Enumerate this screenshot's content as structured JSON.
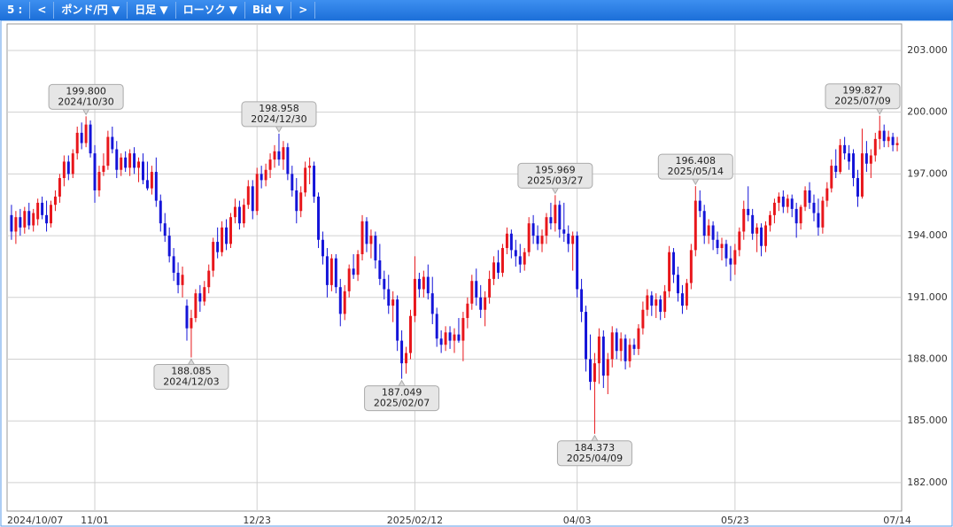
{
  "toolbar": {
    "items": [
      "5 :",
      "<",
      "ポンド/円 ▼",
      "日足 ▼",
      "ローソク ▼",
      "Bid ▼",
      ">"
    ]
  },
  "chart_data": {
    "type": "candlestick",
    "grid": true,
    "up_color": "#e8161b",
    "down_color": "#1414d8",
    "candles": [
      [
        195.0,
        195.5,
        193.8,
        194.2
      ],
      [
        194.2,
        195.2,
        193.6,
        194.9
      ],
      [
        194.9,
        195.3,
        194.0,
        194.4
      ],
      [
        194.4,
        195.4,
        194.1,
        195.2
      ],
      [
        195.2,
        195.6,
        194.3,
        194.5
      ],
      [
        194.5,
        195.3,
        194.2,
        195.1
      ],
      [
        194.8,
        195.8,
        194.5,
        195.6
      ],
      [
        195.6,
        195.9,
        194.8,
        195.0
      ],
      [
        195.0,
        195.7,
        194.2,
        194.6
      ],
      [
        194.6,
        195.7,
        194.4,
        195.5
      ],
      [
        195.5,
        196.2,
        195.2,
        195.9
      ],
      [
        195.9,
        197.0,
        195.6,
        196.8
      ],
      [
        196.8,
        197.9,
        196.4,
        197.6
      ],
      [
        197.6,
        197.9,
        196.7,
        197.0
      ],
      [
        197.0,
        198.2,
        196.8,
        198.0
      ],
      [
        198.0,
        199.3,
        197.7,
        199.0
      ],
      [
        199.0,
        199.5,
        198.2,
        198.5
      ],
      [
        198.5,
        199.8,
        198.3,
        199.4
      ],
      [
        199.4,
        199.6,
        197.8,
        198.0
      ],
      [
        198.0,
        198.4,
        195.6,
        196.2
      ],
      [
        196.2,
        197.4,
        195.9,
        197.1
      ],
      [
        197.1,
        198.0,
        196.9,
        197.4
      ],
      [
        197.4,
        199.1,
        197.2,
        198.8
      ],
      [
        198.8,
        199.3,
        198.0,
        198.2
      ],
      [
        198.2,
        198.6,
        196.8,
        197.2
      ],
      [
        197.2,
        198.0,
        196.9,
        197.8
      ],
      [
        197.8,
        198.1,
        197.1,
        197.3
      ],
      [
        197.3,
        198.2,
        196.9,
        198.0
      ],
      [
        198.0,
        198.3,
        197.0,
        197.3
      ],
      [
        197.3,
        197.8,
        196.6,
        197.6
      ],
      [
        197.6,
        198.0,
        196.5,
        196.7
      ],
      [
        196.7,
        197.6,
        196.2,
        196.3
      ],
      [
        196.3,
        197.4,
        196.0,
        197.1
      ],
      [
        197.1,
        197.8,
        195.4,
        195.7
      ],
      [
        195.7,
        196.0,
        194.2,
        194.6
      ],
      [
        194.6,
        195.1,
        193.7,
        194.0
      ],
      [
        194.0,
        194.4,
        192.7,
        193.0
      ],
      [
        193.0,
        193.4,
        191.8,
        192.2
      ],
      [
        192.2,
        192.7,
        191.2,
        191.6
      ],
      [
        191.6,
        192.5,
        191.0,
        192.1
      ],
      [
        190.6,
        190.9,
        188.9,
        189.5
      ],
      [
        189.5,
        190.4,
        188.085,
        190.0
      ],
      [
        190.0,
        191.4,
        189.8,
        191.2
      ],
      [
        191.2,
        191.6,
        190.3,
        190.8
      ],
      [
        190.8,
        191.8,
        190.6,
        191.5
      ],
      [
        191.5,
        192.6,
        191.2,
        192.3
      ],
      [
        192.3,
        193.9,
        192.0,
        193.7
      ],
      [
        193.7,
        194.4,
        192.9,
        193.2
      ],
      [
        193.2,
        194.7,
        193.0,
        194.4
      ],
      [
        194.4,
        194.8,
        193.3,
        193.6
      ],
      [
        193.6,
        195.1,
        193.4,
        194.9
      ],
      [
        194.9,
        195.8,
        194.6,
        195.4
      ],
      [
        195.4,
        195.7,
        194.3,
        194.6
      ],
      [
        194.6,
        195.8,
        194.4,
        195.5
      ],
      [
        195.5,
        196.7,
        195.3,
        196.4
      ],
      [
        196.4,
        196.7,
        194.8,
        195.2
      ],
      [
        195.2,
        197.3,
        195.0,
        197.0
      ],
      [
        197.0,
        197.4,
        196.3,
        196.7
      ],
      [
        196.7,
        197.5,
        196.4,
        197.2
      ],
      [
        197.2,
        198.0,
        196.8,
        197.7
      ],
      [
        197.7,
        198.4,
        197.3,
        198.1
      ],
      [
        198.1,
        198.958,
        197.4,
        197.7
      ],
      [
        197.7,
        198.6,
        197.2,
        198.3
      ],
      [
        198.3,
        198.5,
        196.7,
        197.0
      ],
      [
        197.0,
        197.4,
        195.9,
        196.2
      ],
      [
        196.2,
        196.8,
        194.6,
        195.2
      ],
      [
        195.2,
        196.4,
        194.9,
        196.1
      ],
      [
        196.1,
        197.6,
        195.9,
        197.3
      ],
      [
        197.3,
        197.8,
        196.5,
        197.4
      ],
      [
        197.4,
        197.6,
        195.6,
        195.9
      ],
      [
        195.9,
        196.1,
        193.4,
        193.8
      ],
      [
        193.8,
        194.2,
        192.6,
        193.0
      ],
      [
        193.0,
        193.4,
        191.0,
        191.6
      ],
      [
        191.6,
        193.1,
        191.3,
        192.9
      ],
      [
        192.9,
        193.1,
        191.2,
        191.5
      ],
      [
        191.5,
        191.9,
        189.6,
        190.2
      ],
      [
        190.2,
        191.6,
        189.9,
        191.3
      ],
      [
        191.3,
        192.6,
        191.0,
        192.4
      ],
      [
        192.4,
        193.1,
        191.9,
        192.1
      ],
      [
        192.1,
        193.3,
        191.8,
        193.1
      ],
      [
        193.1,
        195.0,
        192.8,
        194.7
      ],
      [
        194.7,
        194.9,
        193.2,
        193.6
      ],
      [
        193.6,
        194.3,
        192.9,
        194.0
      ],
      [
        194.0,
        194.2,
        192.4,
        192.8
      ],
      [
        192.8,
        193.6,
        191.6,
        191.9
      ],
      [
        191.9,
        192.3,
        190.9,
        191.4
      ],
      [
        191.4,
        192.1,
        190.2,
        190.6
      ],
      [
        190.6,
        191.3,
        189.8,
        190.9
      ],
      [
        190.9,
        191.1,
        188.4,
        188.9
      ],
      [
        188.9,
        189.4,
        187.049,
        187.8
      ],
      [
        187.8,
        188.6,
        187.3,
        188.3
      ],
      [
        188.3,
        190.4,
        188.0,
        190.1
      ],
      [
        190.1,
        193.0,
        189.8,
        191.9
      ],
      [
        191.9,
        192.2,
        191.0,
        191.4
      ],
      [
        191.4,
        192.3,
        191.0,
        192.0
      ],
      [
        192.0,
        192.6,
        190.9,
        191.2
      ],
      [
        191.2,
        192.0,
        189.7,
        190.2
      ],
      [
        190.2,
        190.5,
        188.6,
        189.0
      ],
      [
        189.0,
        189.4,
        188.3,
        188.7
      ],
      [
        188.7,
        189.6,
        188.4,
        189.3
      ],
      [
        189.3,
        189.6,
        188.5,
        188.9
      ],
      [
        188.9,
        189.5,
        188.3,
        189.2
      ],
      [
        189.2,
        190.0,
        188.8,
        188.9
      ],
      [
        188.9,
        190.3,
        187.9,
        190.0
      ],
      [
        190.0,
        191.0,
        189.5,
        190.7
      ],
      [
        190.7,
        192.1,
        190.4,
        191.8
      ],
      [
        191.8,
        192.4,
        190.6,
        191.0
      ],
      [
        191.0,
        191.6,
        190.0,
        190.4
      ],
      [
        190.4,
        191.3,
        189.6,
        191.0
      ],
      [
        191.0,
        192.3,
        190.7,
        191.9
      ],
      [
        191.9,
        193.0,
        191.6,
        192.7
      ],
      [
        192.7,
        193.3,
        191.9,
        192.2
      ],
      [
        192.2,
        193.6,
        192.0,
        193.4
      ],
      [
        193.4,
        194.4,
        193.1,
        194.1
      ],
      [
        194.1,
        194.3,
        192.9,
        193.3
      ],
      [
        193.3,
        193.8,
        192.5,
        193.0
      ],
      [
        193.0,
        193.6,
        192.2,
        192.6
      ],
      [
        192.6,
        193.4,
        192.3,
        193.2
      ],
      [
        193.2,
        194.9,
        193.0,
        194.6
      ],
      [
        194.6,
        195.0,
        193.6,
        194.0
      ],
      [
        194.0,
        194.5,
        193.3,
        193.6
      ],
      [
        193.6,
        194.3,
        193.2,
        194.0
      ],
      [
        194.0,
        195.1,
        193.6,
        194.9
      ],
      [
        194.9,
        195.6,
        194.3,
        194.6
      ],
      [
        194.6,
        195.969,
        194.2,
        195.5
      ],
      [
        195.5,
        195.7,
        193.9,
        194.3
      ],
      [
        194.3,
        195.6,
        193.7,
        194.1
      ],
      [
        194.1,
        194.5,
        193.2,
        193.6
      ],
      [
        193.6,
        194.2,
        192.3,
        194.0
      ],
      [
        194.0,
        194.2,
        191.0,
        191.4
      ],
      [
        191.4,
        191.9,
        189.8,
        190.3
      ],
      [
        190.3,
        190.6,
        187.4,
        188.0
      ],
      [
        188.0,
        189.2,
        186.5,
        186.9
      ],
      [
        186.9,
        188.3,
        184.373,
        187.8
      ],
      [
        187.8,
        189.5,
        186.8,
        189.1
      ],
      [
        189.1,
        189.4,
        186.6,
        187.2
      ],
      [
        187.2,
        188.3,
        186.3,
        188.0
      ],
      [
        188.0,
        189.6,
        187.6,
        189.3
      ],
      [
        189.3,
        189.5,
        188.0,
        188.4
      ],
      [
        188.4,
        189.3,
        187.9,
        189.0
      ],
      [
        189.0,
        189.2,
        187.5,
        187.9
      ],
      [
        187.9,
        189.0,
        187.6,
        188.7
      ],
      [
        188.7,
        189.0,
        188.2,
        188.5
      ],
      [
        188.5,
        189.7,
        188.2,
        189.5
      ],
      [
        189.5,
        190.8,
        189.2,
        190.4
      ],
      [
        190.4,
        191.4,
        190.1,
        191.1
      ],
      [
        191.1,
        191.3,
        190.1,
        190.6
      ],
      [
        190.6,
        191.2,
        190.0,
        190.9
      ],
      [
        190.9,
        191.1,
        189.9,
        190.3
      ],
      [
        190.3,
        191.6,
        190.0,
        191.3
      ],
      [
        191.3,
        193.5,
        191.0,
        193.2
      ],
      [
        193.2,
        193.4,
        191.7,
        192.1
      ],
      [
        192.1,
        192.5,
        190.8,
        191.2
      ],
      [
        191.2,
        191.6,
        190.2,
        190.6
      ],
      [
        190.6,
        191.9,
        190.4,
        191.7
      ],
      [
        191.7,
        193.6,
        191.4,
        193.3
      ],
      [
        193.3,
        196.408,
        193.0,
        195.7
      ],
      [
        195.7,
        196.2,
        194.9,
        195.2
      ],
      [
        195.2,
        195.5,
        193.6,
        194.0
      ],
      [
        194.0,
        194.8,
        193.6,
        194.5
      ],
      [
        194.5,
        194.7,
        193.3,
        193.8
      ],
      [
        193.8,
        194.2,
        193.1,
        193.4
      ],
      [
        193.4,
        193.9,
        192.8,
        193.6
      ],
      [
        193.6,
        193.8,
        192.5,
        192.9
      ],
      [
        192.9,
        193.5,
        191.8,
        192.6
      ],
      [
        192.6,
        193.6,
        192.1,
        193.3
      ],
      [
        193.3,
        194.4,
        193.0,
        194.2
      ],
      [
        194.2,
        195.7,
        193.8,
        195.3
      ],
      [
        195.3,
        196.4,
        194.7,
        195.0
      ],
      [
        195.0,
        195.3,
        193.8,
        194.1
      ],
      [
        194.1,
        194.6,
        193.2,
        194.4
      ],
      [
        194.4,
        194.6,
        193.0,
        193.5
      ],
      [
        193.5,
        194.7,
        193.2,
        194.5
      ],
      [
        194.5,
        195.2,
        194.2,
        195.0
      ],
      [
        195.0,
        195.8,
        194.6,
        195.6
      ],
      [
        195.6,
        196.1,
        195.2,
        195.9
      ],
      [
        195.9,
        196.2,
        195.1,
        195.4
      ],
      [
        195.4,
        196.0,
        195.1,
        195.8
      ],
      [
        195.8,
        196.0,
        194.9,
        195.3
      ],
      [
        195.3,
        195.6,
        193.9,
        194.6
      ],
      [
        194.6,
        195.5,
        194.3,
        195.4
      ],
      [
        195.4,
        196.4,
        195.2,
        196.2
      ],
      [
        196.2,
        196.6,
        195.3,
        195.6
      ],
      [
        195.6,
        196.0,
        194.7,
        195.1
      ],
      [
        195.1,
        195.8,
        194.0,
        194.4
      ],
      [
        194.4,
        195.9,
        194.1,
        195.7
      ],
      [
        195.7,
        196.6,
        195.4,
        196.3
      ],
      [
        196.3,
        197.7,
        196.1,
        197.4
      ],
      [
        197.4,
        198.2,
        196.8,
        197.1
      ],
      [
        197.1,
        198.7,
        197.0,
        198.4
      ],
      [
        198.4,
        198.8,
        197.7,
        198.0
      ],
      [
        198.0,
        198.4,
        197.2,
        197.6
      ],
      [
        198.0,
        198.2,
        196.4,
        196.8
      ],
      [
        196.8,
        197.2,
        195.4,
        195.9
      ],
      [
        195.9,
        199.2,
        195.8,
        198.0
      ],
      [
        198.0,
        198.6,
        197.1,
        197.5
      ],
      [
        197.5,
        198.2,
        196.8,
        197.9
      ],
      [
        197.9,
        199.0,
        197.6,
        198.7
      ],
      [
        198.7,
        199.827,
        198.2,
        199.1
      ],
      [
        199.1,
        199.4,
        198.3,
        198.6
      ],
      [
        198.6,
        199.1,
        198.3,
        198.8
      ],
      [
        198.8,
        199.0,
        198.1,
        198.4
      ],
      [
        198.4,
        198.8,
        198.1,
        198.5
      ]
    ],
    "xlim": [
      -1,
      203
    ],
    "xticks": [
      {
        "value": 0,
        "label": "2024/10/07"
      },
      {
        "value": 19,
        "label": "11/01"
      },
      {
        "value": 56,
        "label": "12/23"
      },
      {
        "value": 92,
        "label": "2025/02/12"
      },
      {
        "value": 129,
        "label": "04/03"
      },
      {
        "value": 165,
        "label": "05/23"
      },
      {
        "value": 202,
        "label": "07/14"
      }
    ],
    "ylim": [
      180.62,
      204.29
    ],
    "yticks": [
      {
        "value": 182,
        "label": "182.000"
      },
      {
        "value": 185,
        "label": "185.000"
      },
      {
        "value": 188,
        "label": "188.000"
      },
      {
        "value": 191,
        "label": "191.000"
      },
      {
        "value": 194,
        "label": "194.000"
      },
      {
        "value": 197,
        "label": "197.000"
      },
      {
        "value": 200,
        "label": "200.000"
      },
      {
        "value": 203,
        "label": "203.000"
      }
    ],
    "annotations": [
      {
        "index": 17,
        "value": 199.8,
        "label": "199.800",
        "date": "2024/10/30"
      },
      {
        "index": 41,
        "value": 188.085,
        "label": "188.085",
        "date": "2024/12/03"
      },
      {
        "index": 61,
        "value": 198.958,
        "label": "198.958",
        "date": "2024/12/30"
      },
      {
        "index": 89,
        "value": 187.049,
        "label": "187.049",
        "date": "2025/02/07"
      },
      {
        "index": 124,
        "value": 195.969,
        "label": "195.969",
        "date": "2025/03/27"
      },
      {
        "index": 133,
        "value": 184.373,
        "label": "184.373",
        "date": "2025/04/09"
      },
      {
        "index": 156,
        "value": 196.408,
        "label": "196.408",
        "date": "2025/05/14"
      },
      {
        "index": 198,
        "value": 199.827,
        "label": "199.827",
        "date": "2025/07/09"
      }
    ]
  }
}
